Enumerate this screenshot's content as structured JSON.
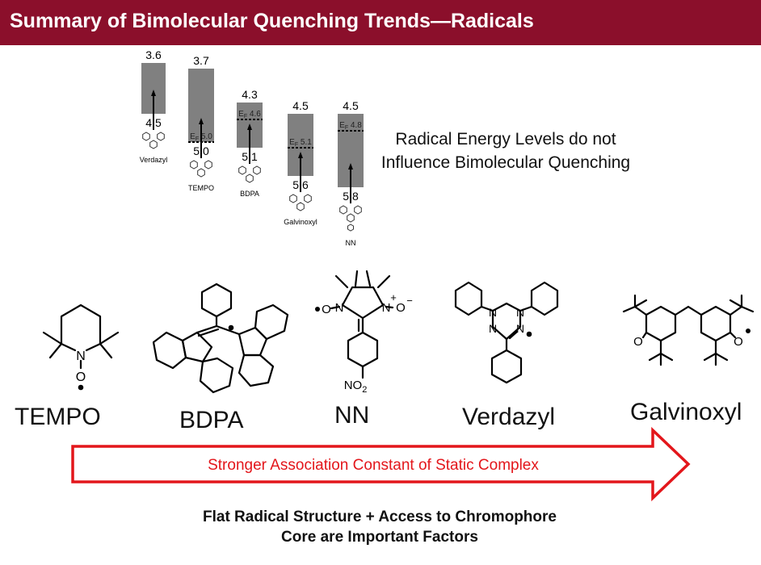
{
  "title": "Summary of Bimolecular Quenching Trends—Radicals",
  "energy_levels": [
    {
      "label": "Verdazyl",
      "top": "3.6",
      "bottom": "4.5",
      "ef": ""
    },
    {
      "label": "TEMPO",
      "top": "3.7",
      "bottom": "5.0",
      "ef": "5.0"
    },
    {
      "label": "BDPA",
      "top": "4.3",
      "bottom": "5.1",
      "ef": "4.6"
    },
    {
      "label": "Galvinoxyl",
      "top": "4.5",
      "bottom": "5.6",
      "ef": "5.1"
    },
    {
      "label": "NN",
      "top": "4.5",
      "bottom": "5.8",
      "ef": "4.8"
    }
  ],
  "ef_prefix": "E",
  "ef_sub": "F",
  "note_line1": "Radical Energy Levels do not",
  "note_line2": "Influence Bimolecular Quenching",
  "structures": {
    "tempo_n": "N",
    "tempo_o": "O",
    "nn_n1": "N",
    "nn_n2": "N",
    "nn_o1": "O",
    "nn_o2": "O",
    "nn_plus": "+",
    "nn_minus": "−",
    "nn_no2": "NO",
    "nn_no2_sub": "2",
    "verdazyl_n1": "N",
    "verdazyl_n2": "N",
    "verdazyl_n3": "N",
    "verdazyl_n4": "N",
    "galvinoxyl_o1": "O",
    "galvinoxyl_o2": "O"
  },
  "names": [
    "TEMPO",
    "BDPA",
    "NN",
    "Verdazyl",
    "Galvinoxyl"
  ],
  "arrow_text": "Stronger Association Constant of Static Complex",
  "footer_line1": "Flat Radical Structure + Access to Chromophore",
  "footer_line2": "Core are Important Factors",
  "colors": {
    "banner": "#8b0f2b",
    "arrow": "#e3161b",
    "bar": "#808080"
  }
}
